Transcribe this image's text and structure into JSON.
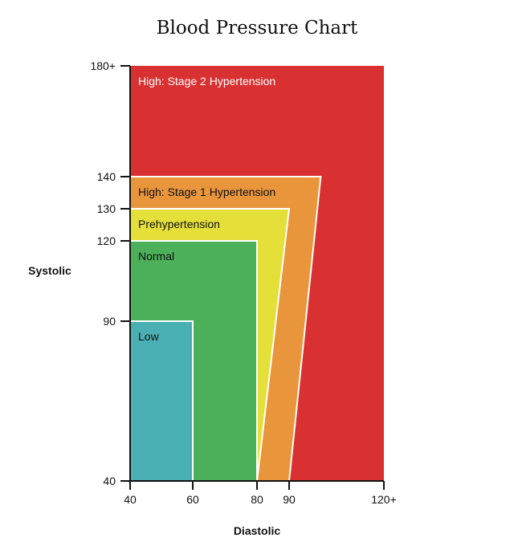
{
  "chart_data": {
    "type": "area",
    "title": "Blood Pressure Chart",
    "xlabel": "Diastolic",
    "ylabel": "Systolic",
    "xlim": [
      40,
      120
    ],
    "ylim": [
      40,
      180
    ],
    "x_ticks": [
      {
        "value": 40,
        "label": "40"
      },
      {
        "value": 60,
        "label": "60"
      },
      {
        "value": 80,
        "label": "80"
      },
      {
        "value": 90,
        "label": "90"
      },
      {
        "value": 120,
        "label": "120+"
      }
    ],
    "y_ticks": [
      {
        "value": 40,
        "label": "40"
      },
      {
        "value": 90,
        "label": "90"
      },
      {
        "value": 120,
        "label": "120"
      },
      {
        "value": 130,
        "label": "130"
      },
      {
        "value": 140,
        "label": "140"
      },
      {
        "value": 180,
        "label": "180+"
      }
    ],
    "zones": [
      {
        "name": "High: Stage 2 Hypertension",
        "color": "#d93131",
        "text_color": "#ffffff",
        "points": [
          [
            40,
            40
          ],
          [
            120,
            40
          ],
          [
            120,
            180
          ],
          [
            40,
            180
          ]
        ]
      },
      {
        "name": "High: Stage 1 Hypertension",
        "color": "#e8953c",
        "text_color": "#111111",
        "points": [
          [
            40,
            40
          ],
          [
            90,
            40
          ],
          [
            100,
            140
          ],
          [
            40,
            140
          ]
        ]
      },
      {
        "name": "Prehypertension",
        "color": "#e5df3a",
        "text_color": "#111111",
        "points": [
          [
            40,
            40
          ],
          [
            80,
            40
          ],
          [
            90,
            130
          ],
          [
            40,
            130
          ]
        ]
      },
      {
        "name": "Normal",
        "color": "#4cb05b",
        "text_color": "#111111",
        "points": [
          [
            40,
            40
          ],
          [
            80,
            40
          ],
          [
            80,
            120
          ],
          [
            40,
            120
          ]
        ]
      },
      {
        "name": "Low",
        "color": "#4aafb3",
        "text_color": "#111111",
        "points": [
          [
            40,
            40
          ],
          [
            60,
            40
          ],
          [
            60,
            90
          ],
          [
            40,
            90
          ]
        ]
      }
    ]
  }
}
